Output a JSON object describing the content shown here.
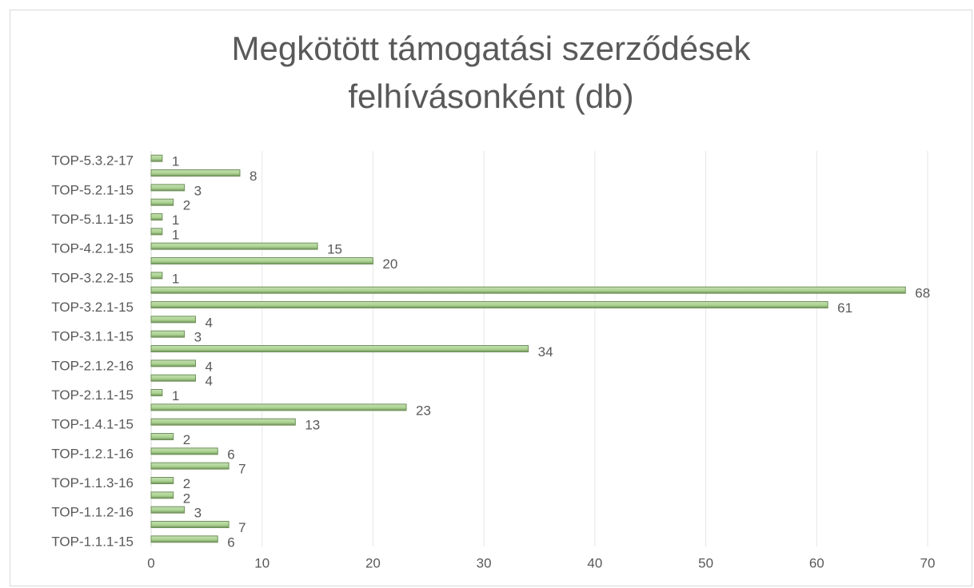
{
  "chart_data": {
    "type": "bar",
    "orientation": "horizontal",
    "title": [
      "Megkötött támogatási szerződések",
      "felhívásonként (db)"
    ],
    "categories": [
      "TOP-1.1.1-15",
      null,
      "TOP-1.1.2-16",
      null,
      "TOP-1.1.3-16",
      null,
      "TOP-1.2.1-16",
      null,
      "TOP-1.4.1-15",
      null,
      "TOP-2.1.1-15",
      null,
      "TOP-2.1.2-16",
      null,
      "TOP-3.1.1-15",
      null,
      "TOP-3.2.1-15",
      null,
      "TOP-3.2.2-15",
      null,
      "TOP-4.2.1-15",
      null,
      "TOP-5.1.1-15",
      null,
      "TOP-5.2.1-15",
      null,
      "TOP-5.3.2-17"
    ],
    "values": [
      6,
      7,
      3,
      2,
      2,
      7,
      6,
      2,
      13,
      23,
      1,
      4,
      4,
      34,
      3,
      4,
      61,
      68,
      1,
      20,
      15,
      1,
      1,
      2,
      3,
      8,
      1
    ],
    "color": "#a9d18e",
    "xlim": [
      0,
      70
    ],
    "xticks": [
      0,
      10,
      20,
      30,
      40,
      50,
      60,
      70
    ],
    "grid": true
  }
}
